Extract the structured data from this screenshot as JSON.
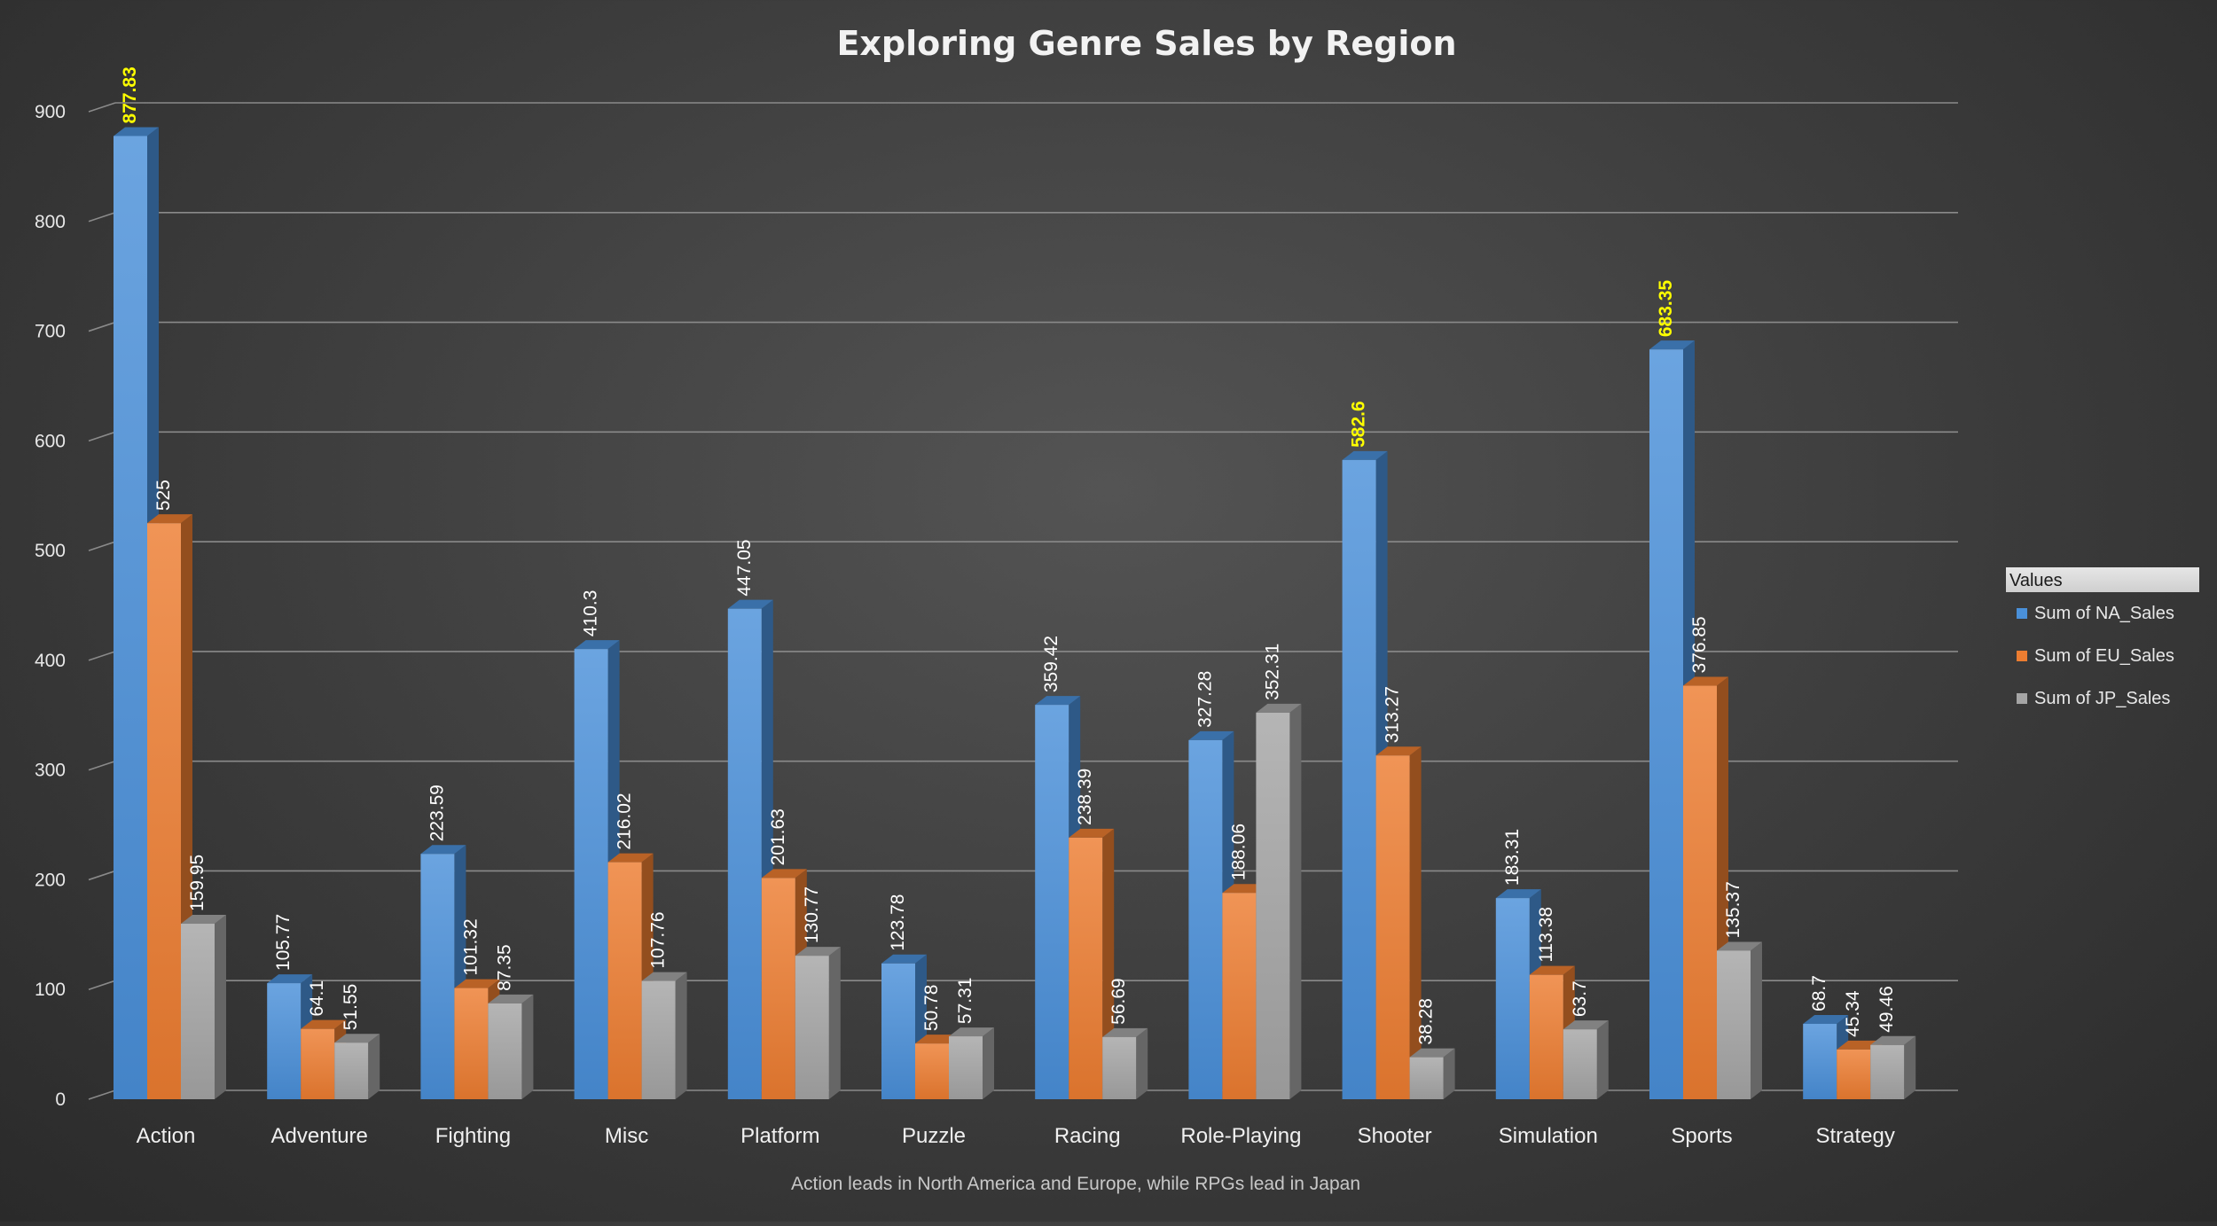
{
  "chart_data": {
    "type": "bar",
    "title": "Exploring Genre Sales by Region",
    "subtitle": "Action leads in North America and Europe, while RPGs lead in Japan",
    "categories": [
      "Action",
      "Adventure",
      "Fighting",
      "Misc",
      "Platform",
      "Puzzle",
      "Racing",
      "Role-Playing",
      "Shooter",
      "Simulation",
      "Sports",
      "Strategy"
    ],
    "series": [
      {
        "name": "Sum of NA_Sales",
        "color": "#4a90d9",
        "values": [
          877.83,
          105.77,
          223.59,
          410.3,
          447.05,
          123.78,
          359.42,
          327.28,
          582.6,
          183.31,
          683.35,
          68.7
        ]
      },
      {
        "name": "Sum of EU_Sales",
        "color": "#ed7d31",
        "values": [
          525,
          64.1,
          101.32,
          216.02,
          201.63,
          50.78,
          238.39,
          188.06,
          313.27,
          113.38,
          376.85,
          45.34
        ]
      },
      {
        "name": "Sum of JP_Sales",
        "color": "#a5a5a5",
        "values": [
          159.95,
          51.55,
          87.35,
          107.76,
          130.77,
          57.31,
          56.69,
          352.31,
          38.28,
          63.7,
          135.37,
          49.46
        ]
      }
    ],
    "highlighted_labels": [
      {
        "series": 0,
        "category": 0
      },
      {
        "series": 0,
        "category": 8
      },
      {
        "series": 0,
        "category": 10
      }
    ],
    "highlight_color": "#ffff00",
    "label_color": "#ffffff",
    "ylim": [
      0,
      900
    ],
    "yticks": [
      0,
      100,
      200,
      300,
      400,
      500,
      600,
      700,
      800,
      900
    ],
    "grid": true,
    "legend": {
      "title": "Values",
      "position": "right"
    }
  }
}
